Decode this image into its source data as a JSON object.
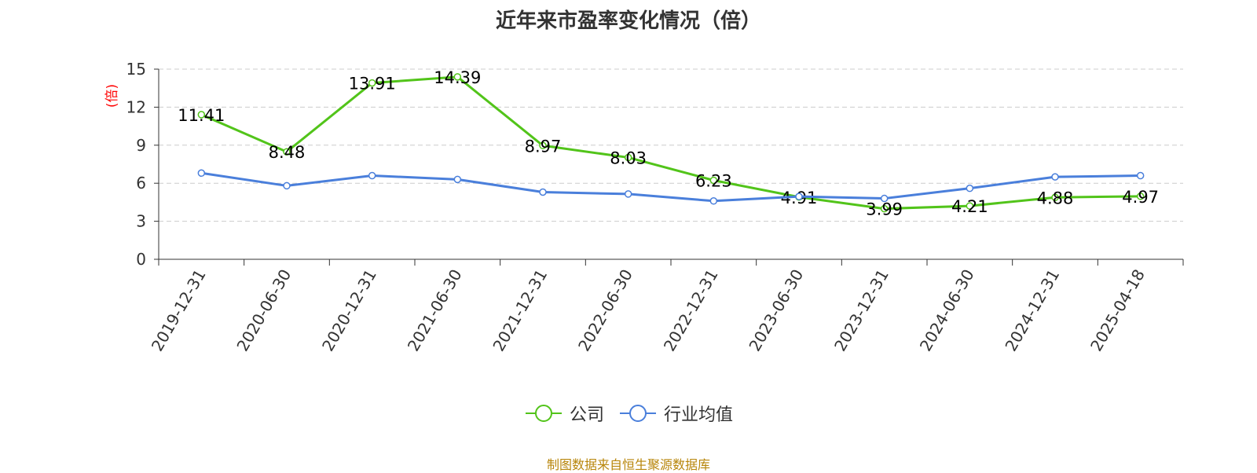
{
  "chart_data": {
    "type": "line",
    "title": "近年来市盈率变化情况（倍）",
    "ylabel": "(倍)",
    "xlabel": "",
    "ylim": [
      0,
      15
    ],
    "yticks": [
      0,
      3,
      6,
      9,
      12,
      15
    ],
    "grid": true,
    "legend_position": "bottom",
    "categories": [
      "2019-12-31",
      "2020-06-30",
      "2020-12-31",
      "2021-06-30",
      "2021-12-31",
      "2022-06-30",
      "2022-12-31",
      "2023-06-30",
      "2023-12-31",
      "2024-06-30",
      "2024-12-31",
      "2025-04-18"
    ],
    "series": [
      {
        "name": "公司",
        "color": "#52c41a",
        "labels": true,
        "values": [
          11.41,
          8.48,
          13.91,
          14.39,
          8.97,
          8.03,
          6.23,
          4.91,
          3.99,
          4.21,
          4.88,
          4.97
        ]
      },
      {
        "name": "行业均值",
        "color": "#4a7fdb",
        "labels": false,
        "values": [
          6.8,
          5.8,
          6.6,
          6.3,
          5.3,
          5.15,
          4.6,
          4.95,
          4.8,
          5.6,
          6.5,
          6.6
        ]
      }
    ]
  },
  "ylabel_color": "#ff0000",
  "source": "制图数据来自恒生聚源数据库"
}
